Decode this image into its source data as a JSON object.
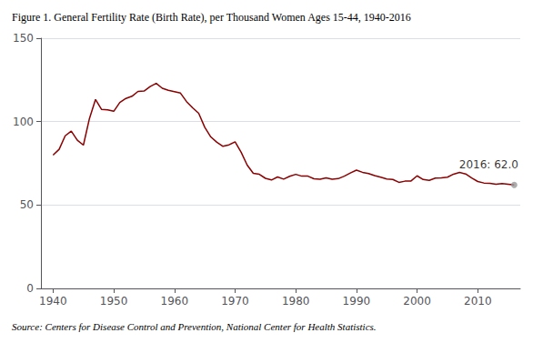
{
  "chart_data": {
    "type": "line",
    "title": "Figure 1. General Fertility Rate (Birth Rate), per Thousand Women Ages 15-44, 1940-2016",
    "source": "Source: Centers for Disease Control and Prevention, National Center for Health Statistics.",
    "color": "#8B0000",
    "annotations": [
      {
        "text": "2016: 62.0",
        "x": 2016,
        "y": 62.0,
        "marker": "circle",
        "color": "#999999"
      }
    ],
    "x": [
      1940,
      1941,
      1942,
      1943,
      1944,
      1945,
      1946,
      1947,
      1948,
      1949,
      1950,
      1951,
      1952,
      1953,
      1954,
      1955,
      1956,
      1957,
      1958,
      1959,
      1960,
      1961,
      1962,
      1963,
      1964,
      1965,
      1966,
      1967,
      1968,
      1969,
      1970,
      1971,
      1972,
      1973,
      1974,
      1975,
      1976,
      1977,
      1978,
      1979,
      1980,
      1981,
      1982,
      1983,
      1984,
      1985,
      1986,
      1987,
      1988,
      1989,
      1990,
      1991,
      1992,
      1993,
      1994,
      1995,
      1996,
      1997,
      1998,
      1999,
      2000,
      2001,
      2002,
      2003,
      2004,
      2005,
      2006,
      2007,
      2008,
      2009,
      2010,
      2011,
      2012,
      2013,
      2014,
      2015,
      2016
    ],
    "values": [
      79.9,
      83.4,
      91.5,
      94.3,
      88.8,
      85.9,
      101.9,
      113.3,
      107.3,
      107.1,
      106.2,
      111.5,
      113.9,
      115.2,
      118.1,
      118.3,
      121.0,
      122.9,
      120.0,
      118.8,
      118.0,
      117.1,
      112.0,
      108.3,
      105.0,
      96.6,
      90.8,
      87.6,
      85.2,
      86.1,
      87.9,
      81.6,
      73.9,
      69.0,
      68.4,
      66.0,
      65.0,
      66.8,
      65.5,
      67.2,
      68.4,
      67.3,
      67.3,
      65.7,
      65.5,
      66.3,
      65.4,
      65.8,
      67.3,
      69.2,
      70.9,
      69.6,
      68.9,
      67.6,
      66.7,
      65.6,
      65.3,
      63.6,
      64.3,
      64.4,
      67.5,
      65.3,
      64.8,
      66.1,
      66.3,
      66.7,
      68.5,
      69.5,
      68.6,
      66.2,
      64.1,
      63.2,
      63.0,
      62.5,
      62.9,
      62.5,
      62.0
    ],
    "xlim": [
      1938,
      2017
    ],
    "xticks": [
      1940,
      1950,
      1960,
      1970,
      1980,
      1990,
      2000,
      2010
    ],
    "ylim": [
      0,
      150
    ],
    "yticks": [
      0,
      50,
      100,
      150
    ],
    "grid": true
  }
}
